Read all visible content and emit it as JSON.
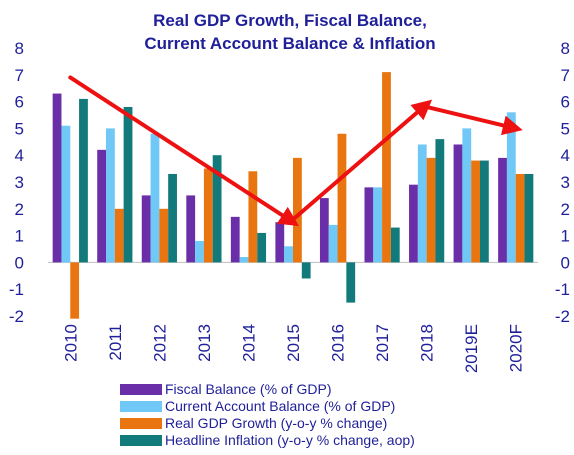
{
  "chart_data": {
    "type": "bar",
    "title_lines": [
      "Real GDP Growth, Fiscal Balance,",
      "Current Account Balance & Inflation"
    ],
    "xlabel": "",
    "ylabel": "",
    "ylim": [
      -2,
      8
    ],
    "y_ticks": [
      8,
      7,
      6,
      5,
      4,
      3,
      2,
      1,
      0,
      -1,
      -2
    ],
    "y_tick_labels": [
      "8",
      "7",
      "6",
      "5",
      "4",
      "3",
      "2",
      "1",
      "0",
      "-1",
      "-2"
    ],
    "dual_y_axis_labels": true,
    "grid": false,
    "categories": [
      "2010",
      "2011",
      "2012",
      "2013",
      "2014",
      "2015",
      "2016",
      "2017",
      "2018",
      "2019E",
      "2020F"
    ],
    "series": [
      {
        "name": "Fiscal Balance (% of GDP)",
        "color": "#6a2fa8",
        "values": [
          6.3,
          4.2,
          2.5,
          2.5,
          1.7,
          1.5,
          2.4,
          2.8,
          2.9,
          4.4,
          3.9
        ]
      },
      {
        "name": "Current Account Balance (% of GDP)",
        "color": "#6fc8f5",
        "values": [
          5.1,
          5.0,
          4.8,
          0.8,
          0.2,
          0.6,
          1.4,
          2.8,
          4.4,
          5.0,
          5.6
        ]
      },
      {
        "name": "Real GDP Growth (y-o-y % change)",
        "color": "#e8750f",
        "values": [
          -2.1,
          2.0,
          2.0,
          3.5,
          3.4,
          3.9,
          4.8,
          7.1,
          3.9,
          3.8,
          3.3
        ]
      },
      {
        "name": "Headline Inflation (y-o-y % change, aop)",
        "color": "#127a7a",
        "values": [
          6.1,
          5.8,
          3.3,
          4.0,
          1.1,
          -0.6,
          -1.5,
          1.3,
          4.6,
          3.8,
          3.3
        ]
      }
    ],
    "legend_position": "bottom",
    "annotations": {
      "arrow_color": "#ee1111",
      "trend_arrows": [
        {
          "from": {
            "x": "2010",
            "y": 6.9
          },
          "to": {
            "x": "2015",
            "y": 1.5
          }
        },
        {
          "from": {
            "x": "2015",
            "y": 1.6
          },
          "to": {
            "x": "2018",
            "y": 5.9
          }
        },
        {
          "from": {
            "x": "2018",
            "y": 5.8
          },
          "to": {
            "x": "2020F",
            "y": 5.0
          }
        }
      ]
    }
  }
}
